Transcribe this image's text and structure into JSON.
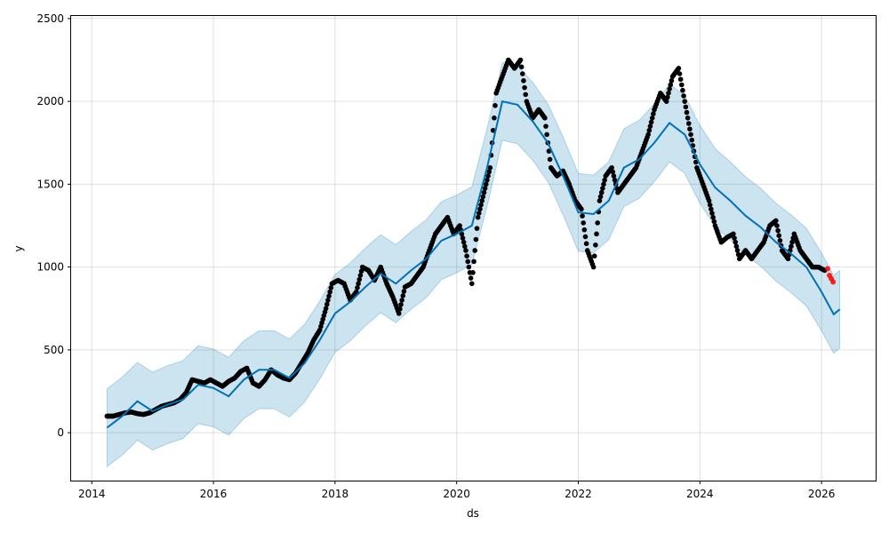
{
  "chart_data": {
    "type": "line",
    "title": "",
    "xlabel": "ds",
    "ylabel": "y",
    "xlim": [
      2013.66,
      2026.89
    ],
    "ylim": [
      -289,
      2521
    ],
    "grid": true,
    "x_ticks": [
      2014,
      2016,
      2018,
      2020,
      2022,
      2024,
      2026
    ],
    "y_ticks": [
      0,
      500,
      1000,
      1500,
      2000,
      2500
    ],
    "colors": {
      "forecast": "#0072B2",
      "band": "#0072B2",
      "actual": "#000000",
      "holdout": "#ff0000"
    },
    "forecast": [
      [
        2014.25,
        30
      ],
      [
        2014.5,
        100
      ],
      [
        2014.75,
        190
      ],
      [
        2015.0,
        130
      ],
      [
        2015.25,
        170
      ],
      [
        2015.5,
        200
      ],
      [
        2015.75,
        290
      ],
      [
        2016.0,
        270
      ],
      [
        2016.25,
        220
      ],
      [
        2016.5,
        320
      ],
      [
        2016.75,
        380
      ],
      [
        2017.0,
        380
      ],
      [
        2017.25,
        330
      ],
      [
        2017.5,
        420
      ],
      [
        2017.75,
        560
      ],
      [
        2018.0,
        720
      ],
      [
        2018.25,
        790
      ],
      [
        2018.5,
        880
      ],
      [
        2018.75,
        960
      ],
      [
        2019.0,
        900
      ],
      [
        2019.25,
        980
      ],
      [
        2019.5,
        1050
      ],
      [
        2019.75,
        1160
      ],
      [
        2020.0,
        1200
      ],
      [
        2020.25,
        1250
      ],
      [
        2020.5,
        1600
      ],
      [
        2020.75,
        2000
      ],
      [
        2021.0,
        1980
      ],
      [
        2021.25,
        1880
      ],
      [
        2021.5,
        1750
      ],
      [
        2021.75,
        1550
      ],
      [
        2022.0,
        1330
      ],
      [
        2022.25,
        1320
      ],
      [
        2022.5,
        1400
      ],
      [
        2022.75,
        1600
      ],
      [
        2023.0,
        1650
      ],
      [
        2023.25,
        1750
      ],
      [
        2023.5,
        1870
      ],
      [
        2023.75,
        1800
      ],
      [
        2024.0,
        1620
      ],
      [
        2024.25,
        1480
      ],
      [
        2024.5,
        1400
      ],
      [
        2024.75,
        1310
      ],
      [
        2025.0,
        1240
      ],
      [
        2025.25,
        1150
      ],
      [
        2025.5,
        1080
      ],
      [
        2025.75,
        1000
      ],
      [
        2026.0,
        850
      ],
      [
        2026.2,
        715
      ],
      [
        2026.3,
        745
      ]
    ],
    "band_halfwidth": 235,
    "actual": [
      [
        2014.25,
        100
      ],
      [
        2014.35,
        100
      ],
      [
        2014.45,
        110
      ],
      [
        2014.55,
        120
      ],
      [
        2014.65,
        125
      ],
      [
        2014.75,
        115
      ],
      [
        2014.85,
        110
      ],
      [
        2014.95,
        120
      ],
      [
        2015.05,
        140
      ],
      [
        2015.15,
        160
      ],
      [
        2015.25,
        170
      ],
      [
        2015.35,
        180
      ],
      [
        2015.45,
        200
      ],
      [
        2015.55,
        240
      ],
      [
        2015.65,
        320
      ],
      [
        2015.75,
        310
      ],
      [
        2015.85,
        300
      ],
      [
        2015.95,
        320
      ],
      [
        2016.05,
        300
      ],
      [
        2016.15,
        280
      ],
      [
        2016.25,
        310
      ],
      [
        2016.35,
        330
      ],
      [
        2016.45,
        370
      ],
      [
        2016.55,
        390
      ],
      [
        2016.65,
        300
      ],
      [
        2016.75,
        280
      ],
      [
        2016.85,
        320
      ],
      [
        2016.95,
        380
      ],
      [
        2017.05,
        350
      ],
      [
        2017.15,
        330
      ],
      [
        2017.25,
        320
      ],
      [
        2017.35,
        360
      ],
      [
        2017.45,
        420
      ],
      [
        2017.55,
        480
      ],
      [
        2017.65,
        560
      ],
      [
        2017.75,
        620
      ],
      [
        2017.85,
        750
      ],
      [
        2017.95,
        900
      ],
      [
        2018.05,
        920
      ],
      [
        2018.15,
        900
      ],
      [
        2018.25,
        800
      ],
      [
        2018.35,
        850
      ],
      [
        2018.45,
        1000
      ],
      [
        2018.55,
        980
      ],
      [
        2018.65,
        920
      ],
      [
        2018.75,
        1000
      ],
      [
        2018.85,
        900
      ],
      [
        2018.95,
        820
      ],
      [
        2019.05,
        720
      ],
      [
        2019.15,
        880
      ],
      [
        2019.25,
        900
      ],
      [
        2019.35,
        950
      ],
      [
        2019.45,
        1000
      ],
      [
        2019.55,
        1100
      ],
      [
        2019.65,
        1200
      ],
      [
        2019.75,
        1250
      ],
      [
        2019.85,
        1300
      ],
      [
        2019.95,
        1200
      ],
      [
        2020.05,
        1250
      ],
      [
        2020.15,
        1100
      ],
      [
        2020.25,
        900
      ],
      [
        2020.35,
        1300
      ],
      [
        2020.45,
        1450
      ],
      [
        2020.55,
        1600
      ],
      [
        2020.65,
        2050
      ],
      [
        2020.75,
        2150
      ],
      [
        2020.85,
        2250
      ],
      [
        2020.95,
        2200
      ],
      [
        2021.05,
        2250
      ],
      [
        2021.15,
        2000
      ],
      [
        2021.25,
        1900
      ],
      [
        2021.35,
        1950
      ],
      [
        2021.45,
        1900
      ],
      [
        2021.55,
        1600
      ],
      [
        2021.65,
        1550
      ],
      [
        2021.75,
        1580
      ],
      [
        2021.85,
        1500
      ],
      [
        2021.95,
        1400
      ],
      [
        2022.05,
        1350
      ],
      [
        2022.15,
        1100
      ],
      [
        2022.25,
        1000
      ],
      [
        2022.35,
        1400
      ],
      [
        2022.45,
        1550
      ],
      [
        2022.55,
        1600
      ],
      [
        2022.65,
        1450
      ],
      [
        2022.75,
        1500
      ],
      [
        2022.85,
        1550
      ],
      [
        2022.95,
        1600
      ],
      [
        2023.05,
        1700
      ],
      [
        2023.15,
        1800
      ],
      [
        2023.25,
        1950
      ],
      [
        2023.35,
        2050
      ],
      [
        2023.45,
        2000
      ],
      [
        2023.55,
        2150
      ],
      [
        2023.65,
        2200
      ],
      [
        2023.75,
        2000
      ],
      [
        2023.85,
        1800
      ],
      [
        2023.95,
        1600
      ],
      [
        2024.05,
        1500
      ],
      [
        2024.15,
        1400
      ],
      [
        2024.25,
        1250
      ],
      [
        2024.35,
        1150
      ],
      [
        2024.45,
        1180
      ],
      [
        2024.55,
        1200
      ],
      [
        2024.65,
        1050
      ],
      [
        2024.75,
        1100
      ],
      [
        2024.85,
        1050
      ],
      [
        2024.95,
        1100
      ],
      [
        2025.05,
        1150
      ],
      [
        2025.15,
        1250
      ],
      [
        2025.25,
        1280
      ],
      [
        2025.35,
        1100
      ],
      [
        2025.45,
        1050
      ],
      [
        2025.55,
        1200
      ],
      [
        2025.65,
        1100
      ],
      [
        2025.75,
        1050
      ],
      [
        2025.85,
        1000
      ],
      [
        2025.95,
        1000
      ],
      [
        2026.05,
        980
      ]
    ],
    "holdout": [
      [
        2026.1,
        990
      ],
      [
        2026.13,
        950
      ],
      [
        2026.16,
        930
      ],
      [
        2026.19,
        910
      ]
    ]
  }
}
